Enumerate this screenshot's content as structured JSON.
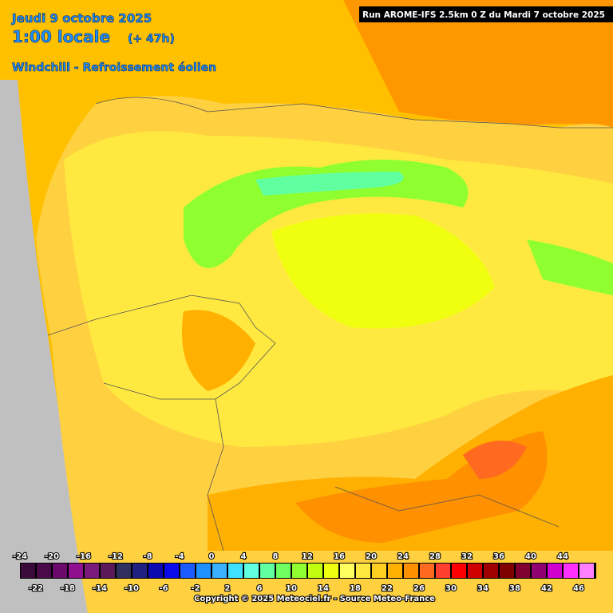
{
  "header": {
    "date": "Jeudi 9 octobre 2025",
    "time": "1:00 locale",
    "lead": "(+ 47h)",
    "variable": "Windchill - Refroissement éolien",
    "run": "Run AROME-IFS 2.5km 0 Z du Mardi 7 octobre 2025"
  },
  "legend": {
    "levels": [
      {
        "value": -24,
        "color": "#3a0a3a"
      },
      {
        "value": -22,
        "color": "#4a0a4a"
      },
      {
        "value": -20,
        "color": "#6a0a6a"
      },
      {
        "value": -18,
        "color": "#900e90"
      },
      {
        "value": -16,
        "color": "#7a1a7a"
      },
      {
        "value": -14,
        "color": "#5a1a5a"
      },
      {
        "value": -12,
        "color": "#303060"
      },
      {
        "value": -10,
        "color": "#202080"
      },
      {
        "value": -8,
        "color": "#0a0ab0"
      },
      {
        "value": -6,
        "color": "#0a0aea"
      },
      {
        "value": -4,
        "color": "#1a5aff"
      },
      {
        "value": -2,
        "color": "#1e90ff"
      },
      {
        "value": 0,
        "color": "#3ab0ff"
      },
      {
        "value": 2,
        "color": "#40e0ff"
      },
      {
        "value": 4,
        "color": "#60ffe0"
      },
      {
        "value": 6,
        "color": "#60ffa0"
      },
      {
        "value": 8,
        "color": "#70ff60"
      },
      {
        "value": 10,
        "color": "#90ff30"
      },
      {
        "value": 12,
        "color": "#c0ff10"
      },
      {
        "value": 14,
        "color": "#f0ff10"
      },
      {
        "value": 16,
        "color": "#ffff60"
      },
      {
        "value": 18,
        "color": "#ffe840"
      },
      {
        "value": 20,
        "color": "#ffd020"
      },
      {
        "value": 22,
        "color": "#ffb000"
      },
      {
        "value": 24,
        "color": "#ff9000"
      },
      {
        "value": 26,
        "color": "#ff6a20"
      },
      {
        "value": 28,
        "color": "#ff4030"
      },
      {
        "value": 30,
        "color": "#ff0000"
      },
      {
        "value": 32,
        "color": "#d00000"
      },
      {
        "value": 34,
        "color": "#a00000"
      },
      {
        "value": 36,
        "color": "#800000"
      },
      {
        "value": 38,
        "color": "#800030"
      },
      {
        "value": 40,
        "color": "#900070"
      },
      {
        "value": 42,
        "color": "#d000d0"
      },
      {
        "value": 44,
        "color": "#ff30ff"
      },
      {
        "value": 46,
        "color": "#ff80ff"
      }
    ]
  },
  "footer": {
    "copyright": "Copyright © 2025 Meteociel.fr - Source Meteo-France"
  }
}
